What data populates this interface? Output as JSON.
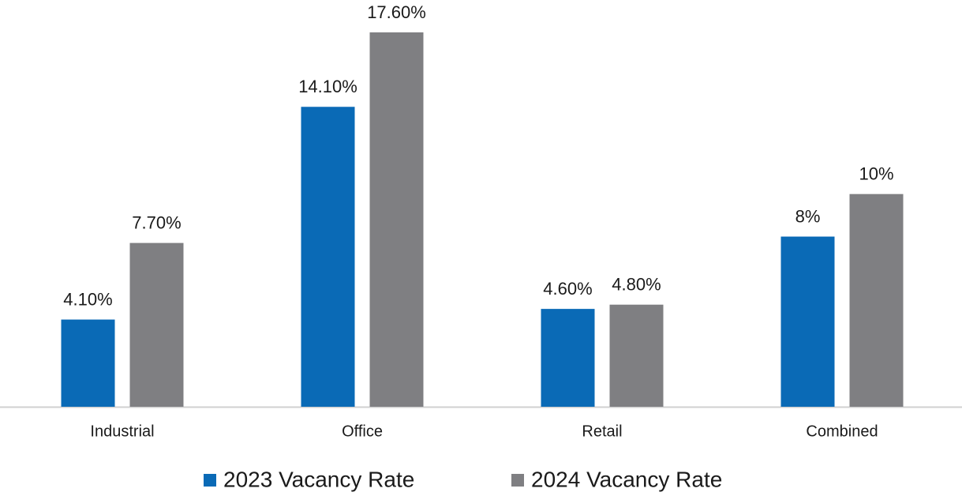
{
  "chart_data": {
    "type": "bar",
    "categories": [
      "Industrial",
      "Office",
      "Retail",
      "Combined"
    ],
    "series": [
      {
        "name": "2023 Vacancy Rate",
        "color": "#0a6ab6",
        "values": [
          4.1,
          14.1,
          4.6,
          8
        ],
        "value_labels": [
          "4.10%",
          "14.10%",
          "4.60%",
          "8%"
        ]
      },
      {
        "name": "2024 Vacancy Rate",
        "color": "#7f7f82",
        "values": [
          7.7,
          17.6,
          4.8,
          10
        ],
        "value_labels": [
          "7.70%",
          "17.60%",
          "4.80%",
          "10%"
        ]
      }
    ]
  }
}
